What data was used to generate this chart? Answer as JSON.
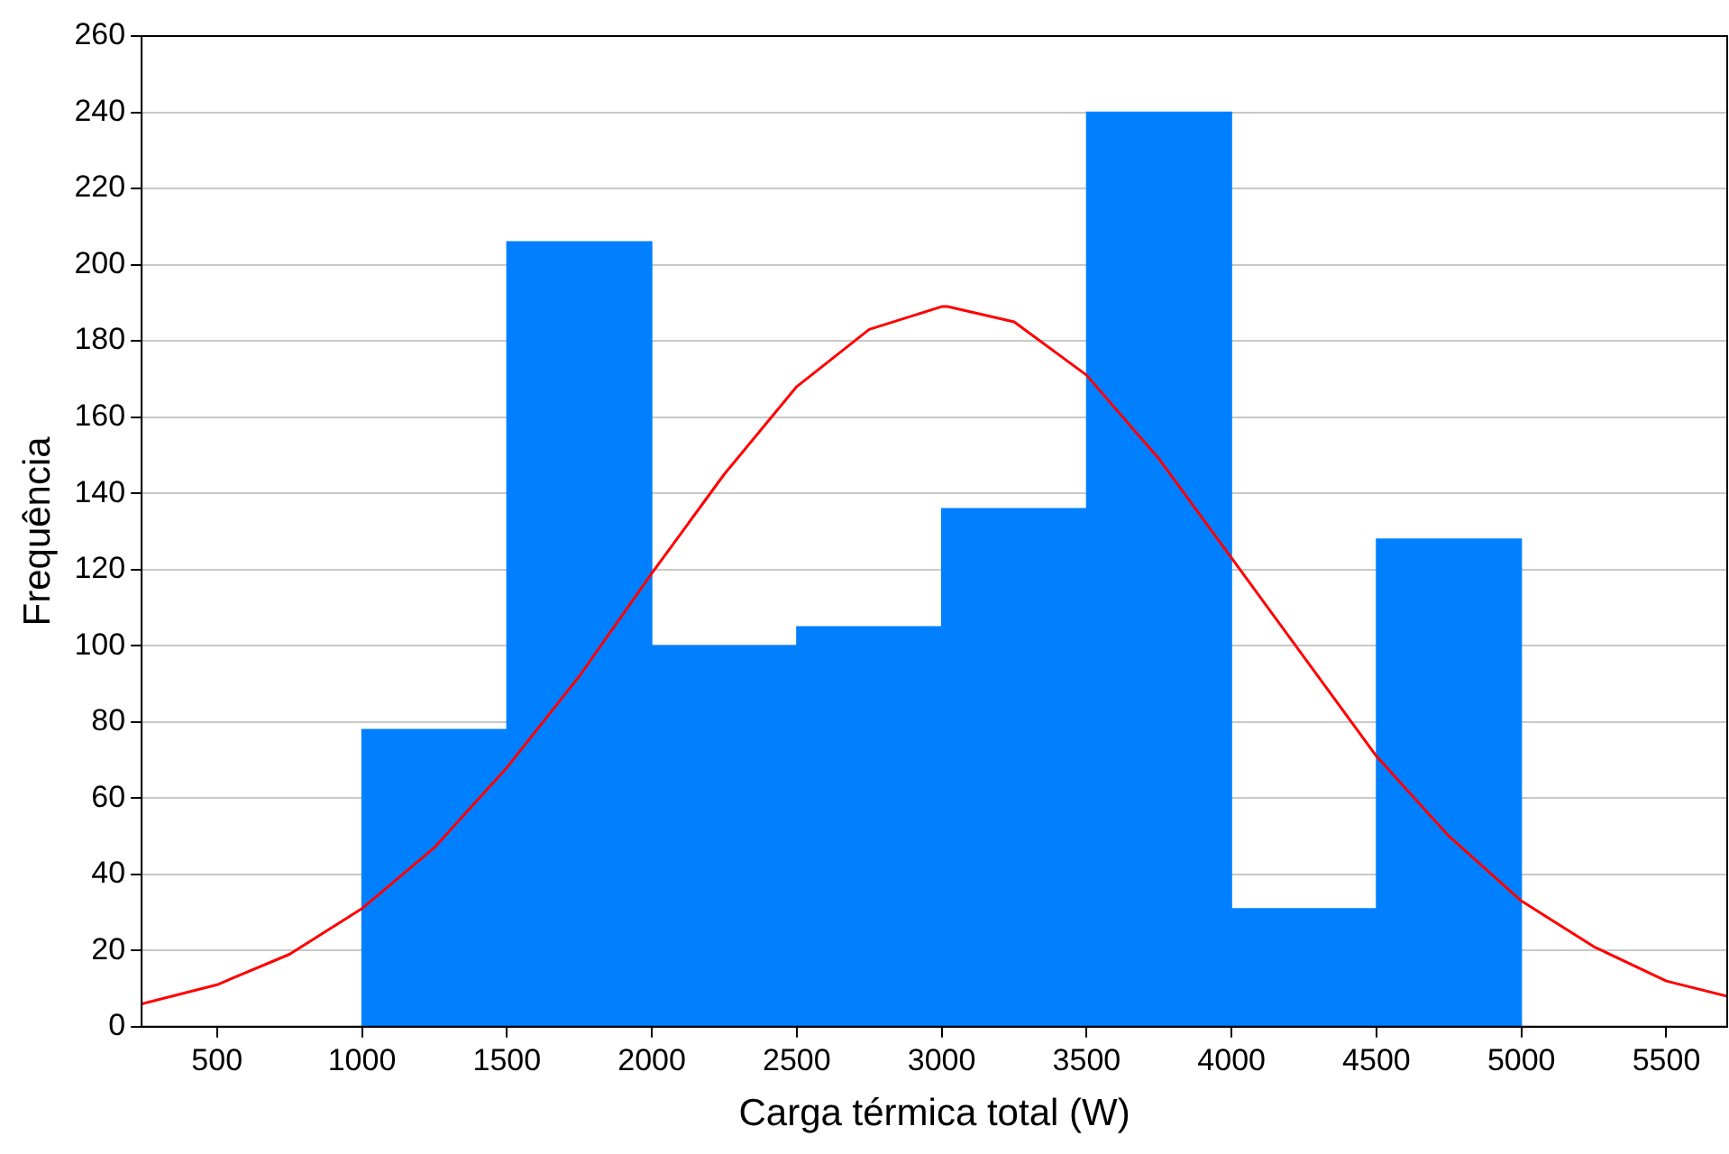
{
  "chart_data": {
    "type": "histogram",
    "xlabel": "Carga térmica total (W)",
    "ylabel": "Frequência",
    "bins": [
      1000,
      1500,
      2000,
      2500,
      3000,
      3500,
      4000,
      4500,
      5000
    ],
    "values": [
      78,
      206,
      100,
      105,
      136,
      240,
      31,
      128
    ],
    "color": "#0080ff",
    "series": [
      {
        "type": "line",
        "color": "#ff0000",
        "x": [
          240,
          500,
          750,
          1000,
          1250,
          1500,
          1750,
          2000,
          2250,
          2500,
          2750,
          3000,
          3020,
          3250,
          3500,
          3750,
          4000,
          4250,
          4500,
          4750,
          5000,
          5250,
          5500,
          5710
        ],
        "values": [
          6,
          11,
          19,
          31,
          47,
          68,
          92,
          119,
          145,
          168,
          183,
          189,
          189,
          185,
          171,
          149,
          123,
          97,
          71,
          50,
          33,
          21,
          12,
          8
        ]
      }
    ],
    "xlim": [
      240,
      5710
    ],
    "xticks": [
      500,
      1000,
      1500,
      2000,
      2500,
      3000,
      3500,
      4000,
      4500,
      5000,
      5500
    ],
    "ylim": [
      0,
      260
    ],
    "yticks": [
      0,
      20,
      40,
      60,
      80,
      100,
      120,
      140,
      160,
      180,
      200,
      220,
      240,
      260
    ],
    "grid": "y",
    "legend": false,
    "marker": "none",
    "line_style": "solid"
  }
}
